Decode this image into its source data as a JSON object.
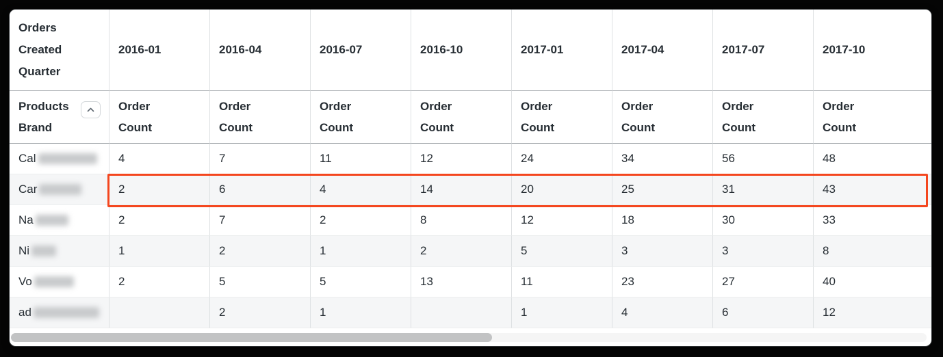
{
  "colors": {
    "highlight_border": "#f4461e",
    "text": "#262d33",
    "alt_row_bg": "#f5f6f7",
    "scroll_thumb": "#c2c3c4"
  },
  "table": {
    "corner_header": "Orders Created Quarter",
    "row_dimension": {
      "label": "Products Brand",
      "collapse_icon": "chevron-up"
    },
    "measure_label": "Order Count",
    "quarters": [
      "2016-01",
      "2016-04",
      "2016-07",
      "2016-10",
      "2017-01",
      "2017-04",
      "2017-07",
      "2017-10"
    ],
    "rows": [
      {
        "brand_prefix": "Cal",
        "redacted": true,
        "blur_width": 86,
        "highlighted": false,
        "values": [
          "4",
          "7",
          "11",
          "12",
          "24",
          "34",
          "56",
          "48"
        ]
      },
      {
        "brand_prefix": "Car",
        "redacted": true,
        "blur_width": 62,
        "highlighted": true,
        "values": [
          "2",
          "6",
          "4",
          "14",
          "20",
          "25",
          "31",
          "43"
        ]
      },
      {
        "brand_prefix": "Na",
        "redacted": true,
        "blur_width": 48,
        "highlighted": false,
        "values": [
          "2",
          "7",
          "2",
          "8",
          "12",
          "18",
          "30",
          "33"
        ]
      },
      {
        "brand_prefix": "Ni",
        "redacted": true,
        "blur_width": 36,
        "highlighted": false,
        "values": [
          "1",
          "2",
          "1",
          "2",
          "5",
          "3",
          "3",
          "8"
        ]
      },
      {
        "brand_prefix": "Vo",
        "redacted": true,
        "blur_width": 58,
        "highlighted": false,
        "values": [
          "2",
          "5",
          "5",
          "13",
          "11",
          "23",
          "27",
          "40"
        ]
      },
      {
        "brand_prefix": "ad",
        "redacted": true,
        "blur_width": 96,
        "highlighted": false,
        "values": [
          "",
          "2",
          "1",
          "",
          "1",
          "4",
          "6",
          "12"
        ]
      }
    ]
  },
  "scrollbar": {
    "orientation": "horizontal"
  }
}
